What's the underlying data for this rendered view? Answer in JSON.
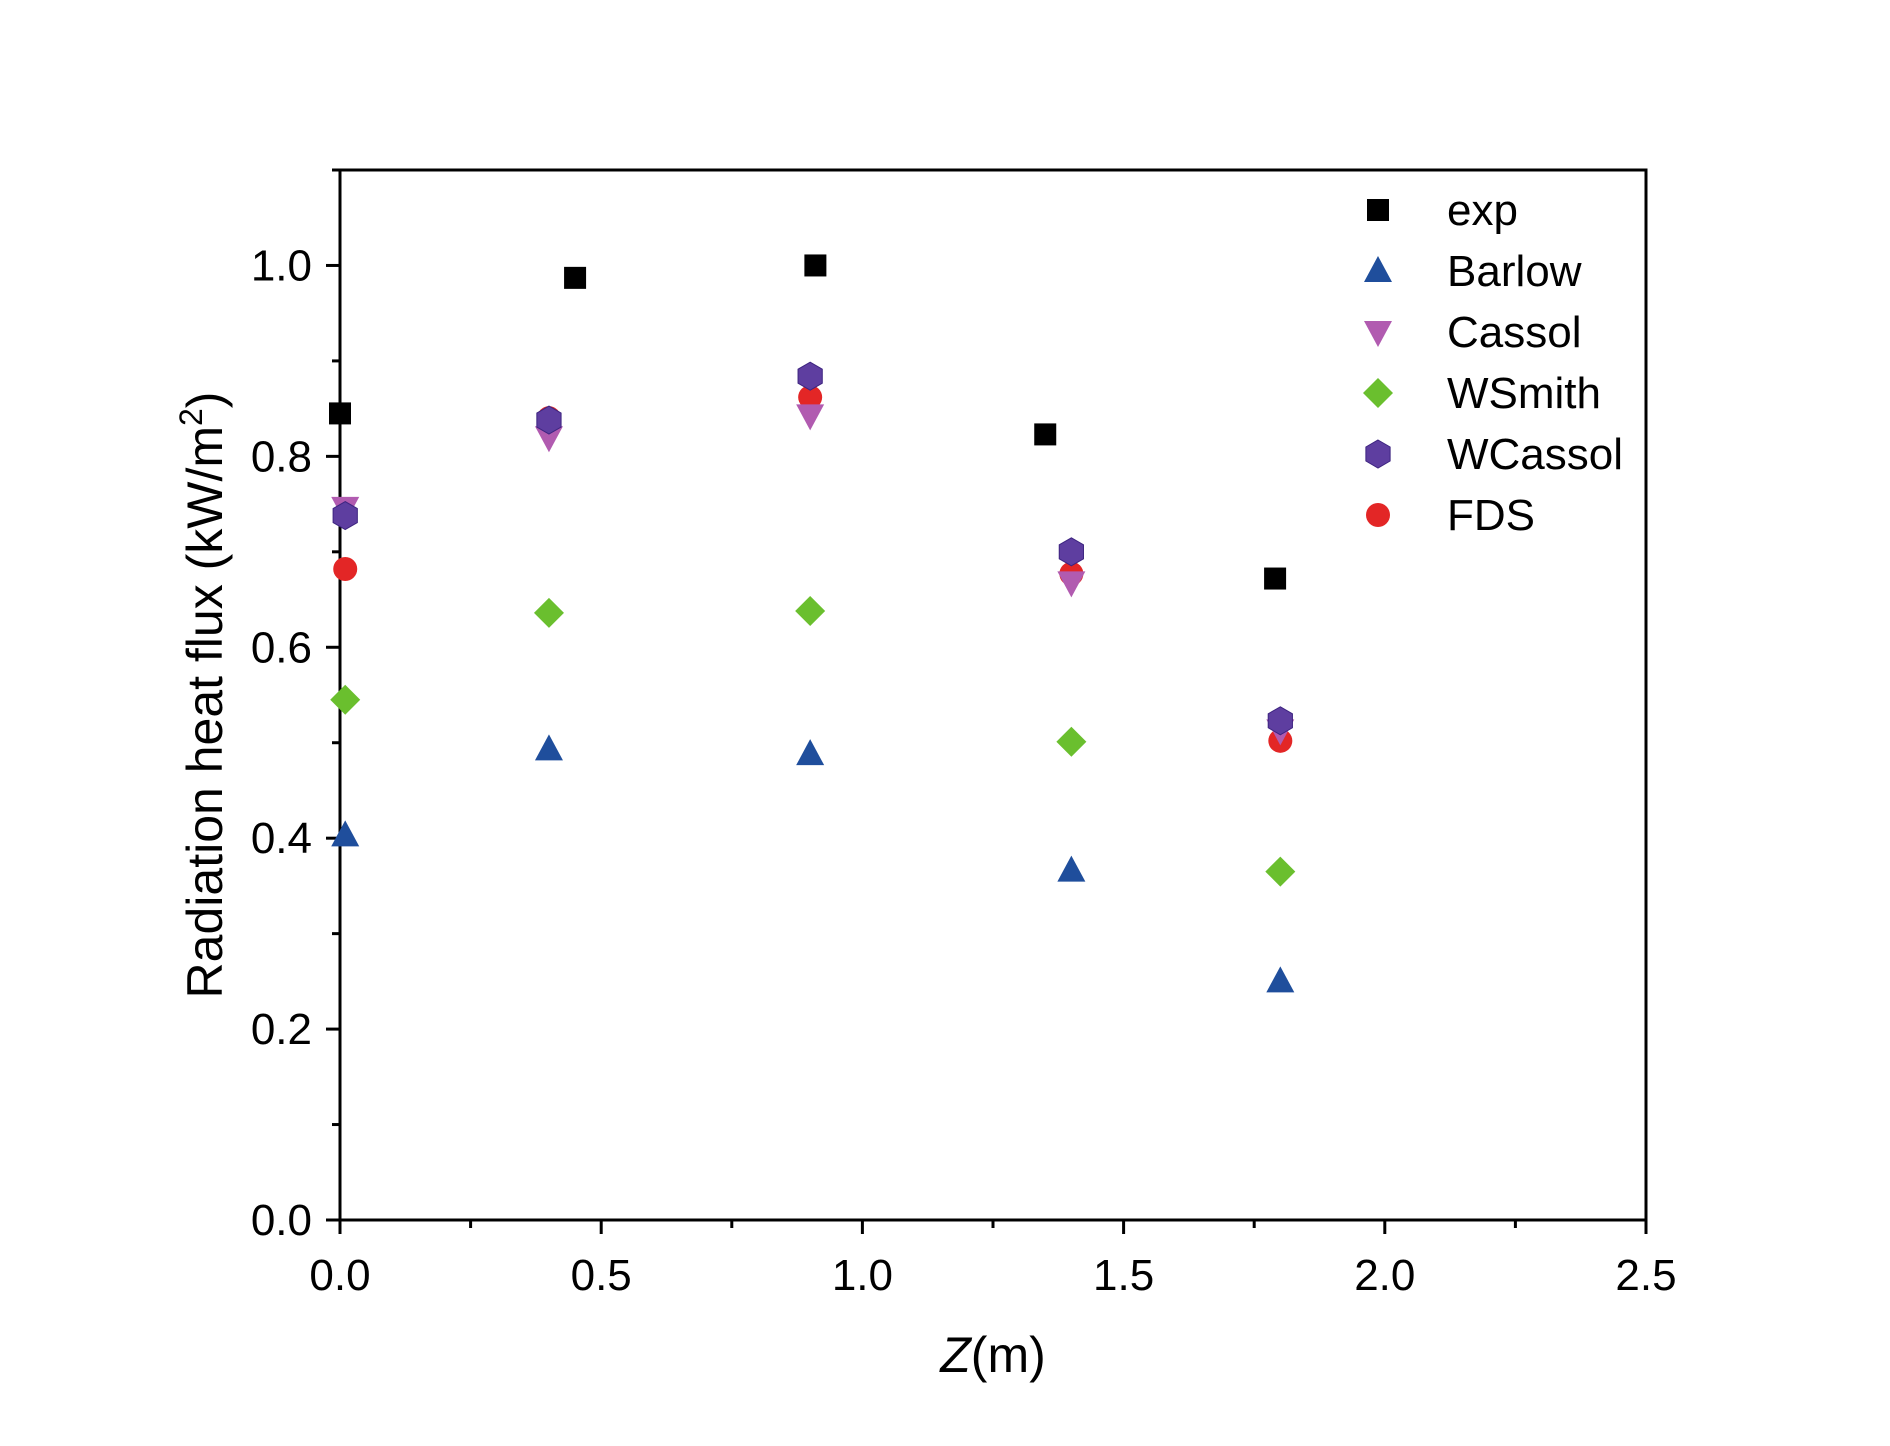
{
  "chart_data": {
    "type": "scatter",
    "xlabel": {
      "italic": "Z",
      "rest": "(m)"
    },
    "ylabel": {
      "main": "Radiation heat flux (kW/m",
      "sup": "2",
      "close": ")"
    },
    "xlim": [
      0,
      2.5
    ],
    "ylim": [
      0,
      1.1
    ],
    "xticks": [
      0.0,
      0.5,
      1.0,
      1.5,
      2.0,
      2.5
    ],
    "xtick_labels": [
      "0.0",
      "0.5",
      "1.0",
      "1.5",
      "2.0",
      "2.5"
    ],
    "yticks": [
      0.0,
      0.2,
      0.4,
      0.6,
      0.8,
      1.0
    ],
    "ytick_labels": [
      "0.0",
      "0.2",
      "0.4",
      "0.6",
      "0.8",
      "1.0"
    ],
    "grid": false,
    "legend_position": "top-right",
    "series": [
      {
        "name": "exp",
        "marker": "square",
        "color": "#000000",
        "x": [
          0.0,
          0.45,
          0.91,
          1.35,
          1.79
        ],
        "y": [
          0.845,
          0.987,
          1.0,
          0.823,
          0.672
        ]
      },
      {
        "name": "Barlow",
        "marker": "triangle-up",
        "color": "#1f4e9c",
        "x": [
          0.01,
          0.4,
          0.9,
          1.4,
          1.8
        ],
        "y": [
          0.403,
          0.493,
          0.488,
          0.366,
          0.25
        ]
      },
      {
        "name": "Cassol",
        "marker": "triangle-down",
        "color": "#b15bb0",
        "x": [
          0.01,
          0.4,
          0.9,
          1.4,
          1.8
        ],
        "y": [
          0.746,
          0.82,
          0.843,
          0.668,
          0.513
        ]
      },
      {
        "name": "WSmith",
        "marker": "diamond",
        "color": "#6abf2e",
        "x": [
          0.01,
          0.4,
          0.9,
          1.4,
          1.8
        ],
        "y": [
          0.545,
          0.636,
          0.638,
          0.501,
          0.365
        ]
      },
      {
        "name": "WCassol",
        "marker": "hexagon",
        "color": "#5e3ea0",
        "x": [
          0.01,
          0.4,
          0.9,
          1.4,
          1.8
        ],
        "y": [
          0.738,
          0.838,
          0.884,
          0.7,
          0.523
        ]
      },
      {
        "name": "FDS",
        "marker": "circle",
        "color": "#e32626",
        "x": [
          0.01,
          0.4,
          0.9,
          1.4,
          1.8
        ],
        "y": [
          0.682,
          0.84,
          0.862,
          0.677,
          0.502
        ]
      }
    ]
  }
}
